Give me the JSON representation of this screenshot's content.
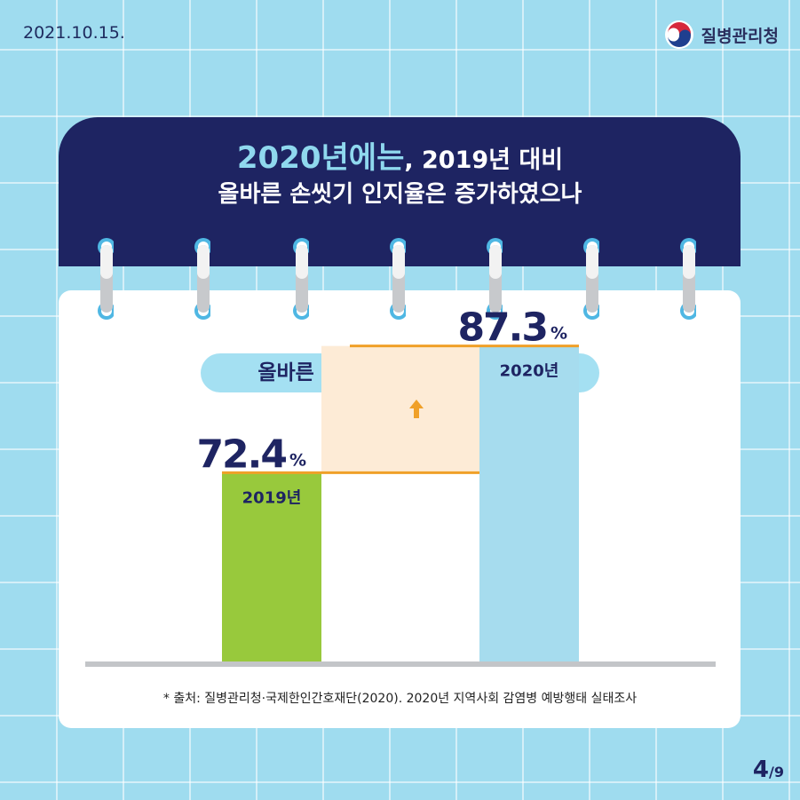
{
  "date": "2021.10.15.",
  "brand": {
    "name": "질병관리청",
    "colors": {
      "red": "#d6283c",
      "blue": "#1f3f8f"
    }
  },
  "title": {
    "highlight": "2020년에는",
    "line1_rest": ", 2019년 대비",
    "line2": "올바른 손씻기 인지율은 증가하였으나"
  },
  "chart_data": {
    "type": "bar",
    "subtitle": "올바른 손씻기를 실천한다고 응답",
    "categories": [
      "2019년",
      "2020년"
    ],
    "values": [
      72.4,
      87.3
    ],
    "value_labels": [
      "72.4",
      "87.3"
    ],
    "unit": "%",
    "colors": [
      "#98c93c",
      "#a6dcee"
    ],
    "increase_indicator": "up-arrow-icon",
    "grid": false,
    "source": "* 출처: 질병관리청·국제한인간호재단(2020). 2020년 지역사회 감염병 예방행태 실태조사"
  },
  "pagination": {
    "current": "4",
    "separator": "/",
    "total": "9"
  },
  "theme": {
    "navy": "#1e2462",
    "accent_orange": "#f0a028",
    "band_fill": "#fdebd6"
  }
}
